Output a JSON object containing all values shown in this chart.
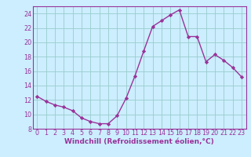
{
  "x": [
    0,
    1,
    2,
    3,
    4,
    5,
    6,
    7,
    8,
    9,
    10,
    11,
    12,
    13,
    14,
    15,
    16,
    17,
    18,
    19,
    20,
    21,
    22,
    23
  ],
  "y": [
    12.5,
    11.8,
    11.3,
    11.0,
    10.5,
    9.5,
    9.0,
    8.7,
    8.7,
    9.8,
    12.2,
    15.3,
    18.8,
    22.2,
    23.0,
    23.8,
    24.5,
    20.8,
    20.8,
    17.3,
    18.3,
    17.5,
    16.5,
    15.2
  ],
  "line_color": "#993399",
  "marker": "D",
  "markersize": 2.2,
  "linewidth": 1.0,
  "background_color": "#cceeff",
  "grid_color": "#99cccc",
  "xlabel": "Windchill (Refroidissement éolien,°C)",
  "xlabel_fontsize": 6.5,
  "xlim": [
    -0.5,
    23.5
  ],
  "ylim": [
    8,
    25
  ],
  "yticks": [
    8,
    10,
    12,
    14,
    16,
    18,
    20,
    22,
    24
  ],
  "xticks": [
    0,
    1,
    2,
    3,
    4,
    5,
    6,
    7,
    8,
    9,
    10,
    11,
    12,
    13,
    14,
    15,
    16,
    17,
    18,
    19,
    20,
    21,
    22,
    23
  ],
  "tick_fontsize": 5.8,
  "spine_color": "#993399",
  "title_color": "#993399",
  "xlabel_color": "#993399",
  "xlabel_bold": true
}
